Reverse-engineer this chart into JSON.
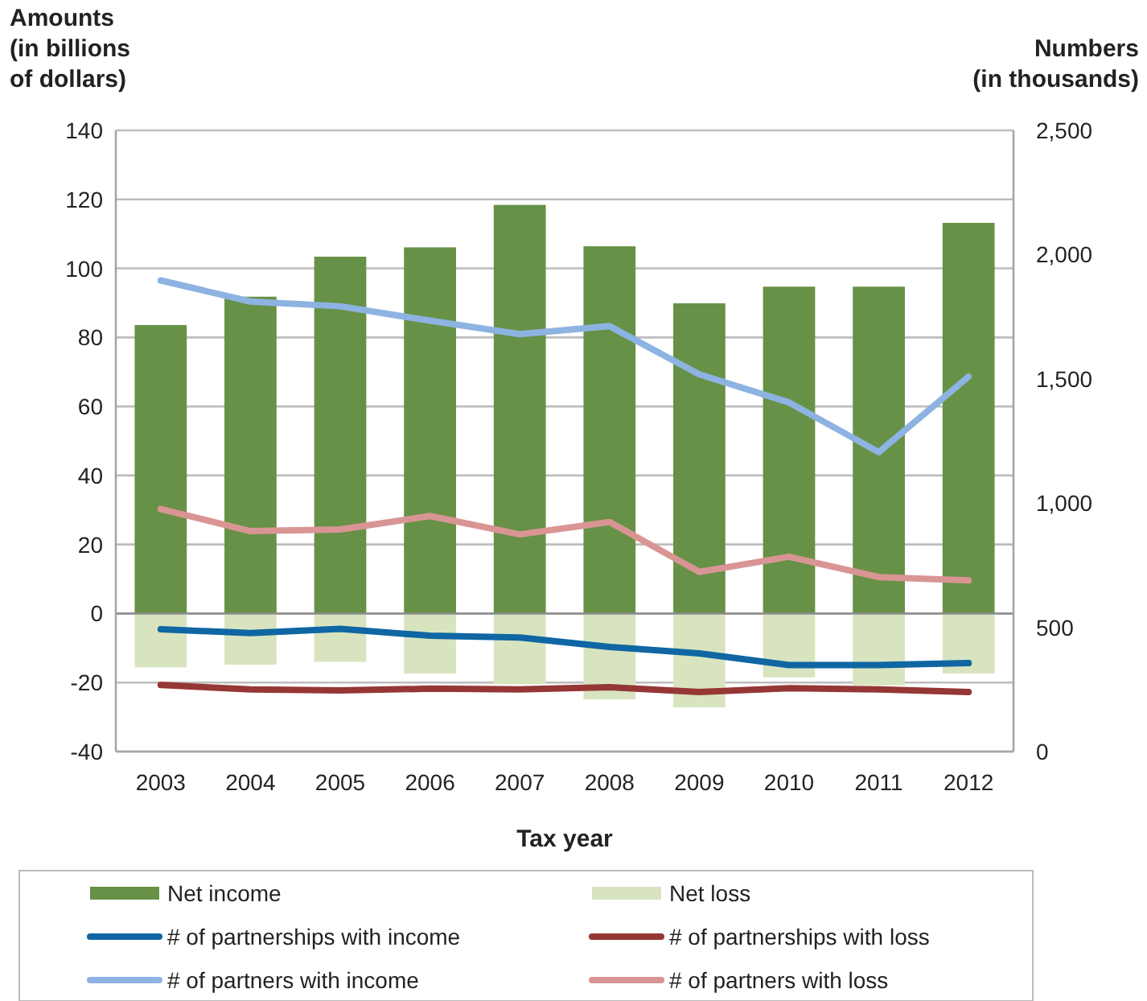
{
  "chart_data": {
    "type": "bar",
    "categories": [
      "2003",
      "2004",
      "2005",
      "2006",
      "2007",
      "2008",
      "2009",
      "2010",
      "2011",
      "2012"
    ],
    "stacked": true,
    "xlabel": "Tax year",
    "ylabel": "Amounts\n(in billions\nof dollars)",
    "y2label": "Numbers\n(in thousands)",
    "ylim": [
      -40,
      140
    ],
    "yticks": [
      -40,
      -20,
      0,
      20,
      40,
      60,
      80,
      100,
      120,
      140
    ],
    "y2lim": [
      0,
      2500
    ],
    "y2ticks": [
      0,
      500,
      {
        "value": 1000,
        "label": "1,000"
      },
      {
        "value": 1500,
        "label": "1,500"
      },
      {
        "value": 2000,
        "label": "2,000"
      },
      {
        "value": 2500,
        "label": "2,500"
      }
    ],
    "grid": "y",
    "legend": "bottom",
    "line_style": "solid",
    "marker": "none",
    "series": [
      {
        "name": "Net income",
        "color": "#679146",
        "values": [
          83.6,
          91.8,
          103.4,
          106.1,
          118.4,
          106.4,
          89.9,
          94.7,
          94.7,
          113.2
        ]
      },
      {
        "name": "Net loss",
        "color": "#d8e4bf",
        "values": [
          -15.6,
          -14.8,
          -14,
          -17.4,
          -20.5,
          -24.9,
          -27.2,
          -18.5,
          -20.8,
          -17.4
        ]
      },
      {
        "name": "# of partnerships with income",
        "type": "line",
        "axis": "y2",
        "color": "#0f66a3",
        "values": [
          492,
          477,
          494,
          466,
          459,
          421,
          395,
          348,
          348,
          356
        ]
      },
      {
        "name": "# of partnerships with loss",
        "type": "line",
        "axis": "y2",
        "color": "#953735",
        "values": [
          268,
          250,
          246,
          253,
          250,
          259,
          240,
          255,
          250,
          240
        ]
      },
      {
        "name": "# of partners with income",
        "type": "line",
        "axis": "y2",
        "color": "#8db3e2",
        "values": [
          1896,
          1811,
          1792,
          1734,
          1680,
          1712,
          1518,
          1405,
          1205,
          1509
        ]
      },
      {
        "name": "# of partners with loss",
        "type": "line",
        "axis": "y2",
        "color": "#d99594",
        "values": [
          976,
          887,
          894,
          948,
          874,
          924,
          723,
          784,
          702,
          689
        ]
      }
    ]
  }
}
